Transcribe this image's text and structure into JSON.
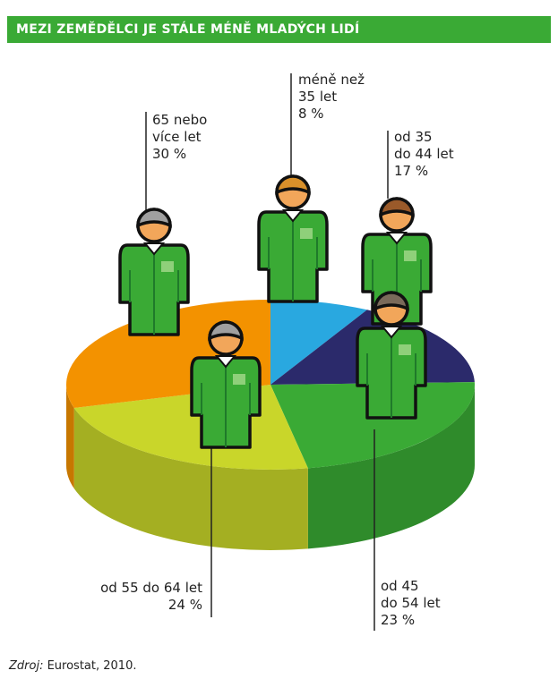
{
  "chart_data": {
    "type": "pie",
    "title": "MEZI ZEMĚDĚLCI JE STÁLE MÉNĚ MLADÝCH LIDÍ",
    "categories": [
      "méně než\n35 let",
      "od 35\ndo 44 let",
      "od 45\ndo 54 let",
      "od 55 do 64 let",
      "65 nebo\nvíce let"
    ],
    "values": [
      8,
      17,
      23,
      24,
      30
    ],
    "value_labels": [
      "8 %",
      "17 %",
      "23 %",
      "24 %",
      "30 %"
    ],
    "colors": [
      "#29a8e0",
      "#2b2a6b",
      "#3aaa35",
      "#c9d62a",
      "#f39200"
    ],
    "source_label": "Zdroj:",
    "source": "Eurostat, 2010."
  }
}
